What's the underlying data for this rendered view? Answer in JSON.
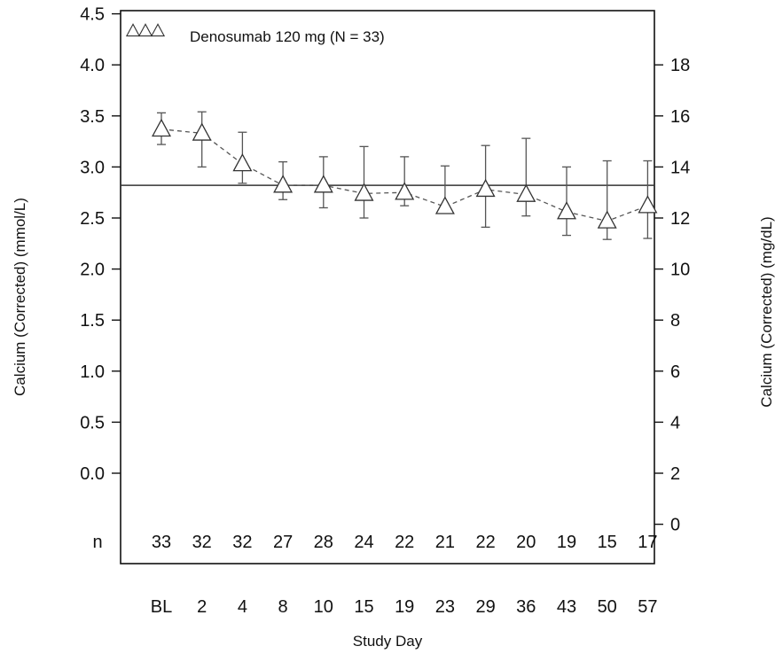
{
  "chart_data": {
    "type": "line",
    "title": "",
    "xlabel": "Study Day",
    "ylabel_left": "Calcium (Corrected) (mmol/L)",
    "ylabel_right": "Calcium (Corrected)  (mg/dL)",
    "categories": [
      "BL",
      "2",
      "4",
      "8",
      "10",
      "15",
      "19",
      "23",
      "29",
      "36",
      "43",
      "50",
      "57"
    ],
    "series": [
      {
        "name": "Denosumab 120 mg (N = 33)",
        "marker": "triangle-open",
        "line_style": "dashed",
        "mean": [
          3.37,
          3.33,
          3.03,
          2.82,
          2.82,
          2.74,
          2.75,
          2.61,
          2.78,
          2.73,
          2.56,
          2.47,
          2.62
        ],
        "lower": [
          3.22,
          3.0,
          2.84,
          2.68,
          2.6,
          2.5,
          2.62,
          2.55,
          2.41,
          2.52,
          2.33,
          2.29,
          2.3
        ],
        "upper": [
          3.53,
          3.54,
          3.34,
          3.05,
          3.1,
          3.2,
          3.1,
          3.01,
          3.21,
          3.28,
          3.0,
          3.06,
          3.06
        ]
      }
    ],
    "n_row_label": "n",
    "n_values": [
      "33",
      "32",
      "32",
      "27",
      "28",
      "24",
      "22",
      "21",
      "22",
      "20",
      "19",
      "15",
      "17"
    ],
    "reference_line_mmol": 2.82,
    "y_left_ticks": [
      "0.0",
      "0.5",
      "1.0",
      "1.5",
      "2.0",
      "2.5",
      "3.0",
      "3.5",
      "4.0",
      "4.5"
    ],
    "y_left_tick_values": [
      0.0,
      0.5,
      1.0,
      1.5,
      2.0,
      2.5,
      3.0,
      3.5,
      4.0,
      4.5
    ],
    "y_right_ticks": [
      "0",
      "2",
      "4",
      "6",
      "8",
      "10",
      "12",
      "14",
      "16",
      "18"
    ],
    "y_right_tick_values": [
      0,
      2,
      4,
      6,
      8,
      10,
      12,
      14,
      16,
      18
    ],
    "legend_position": "top-left",
    "grid": false
  }
}
